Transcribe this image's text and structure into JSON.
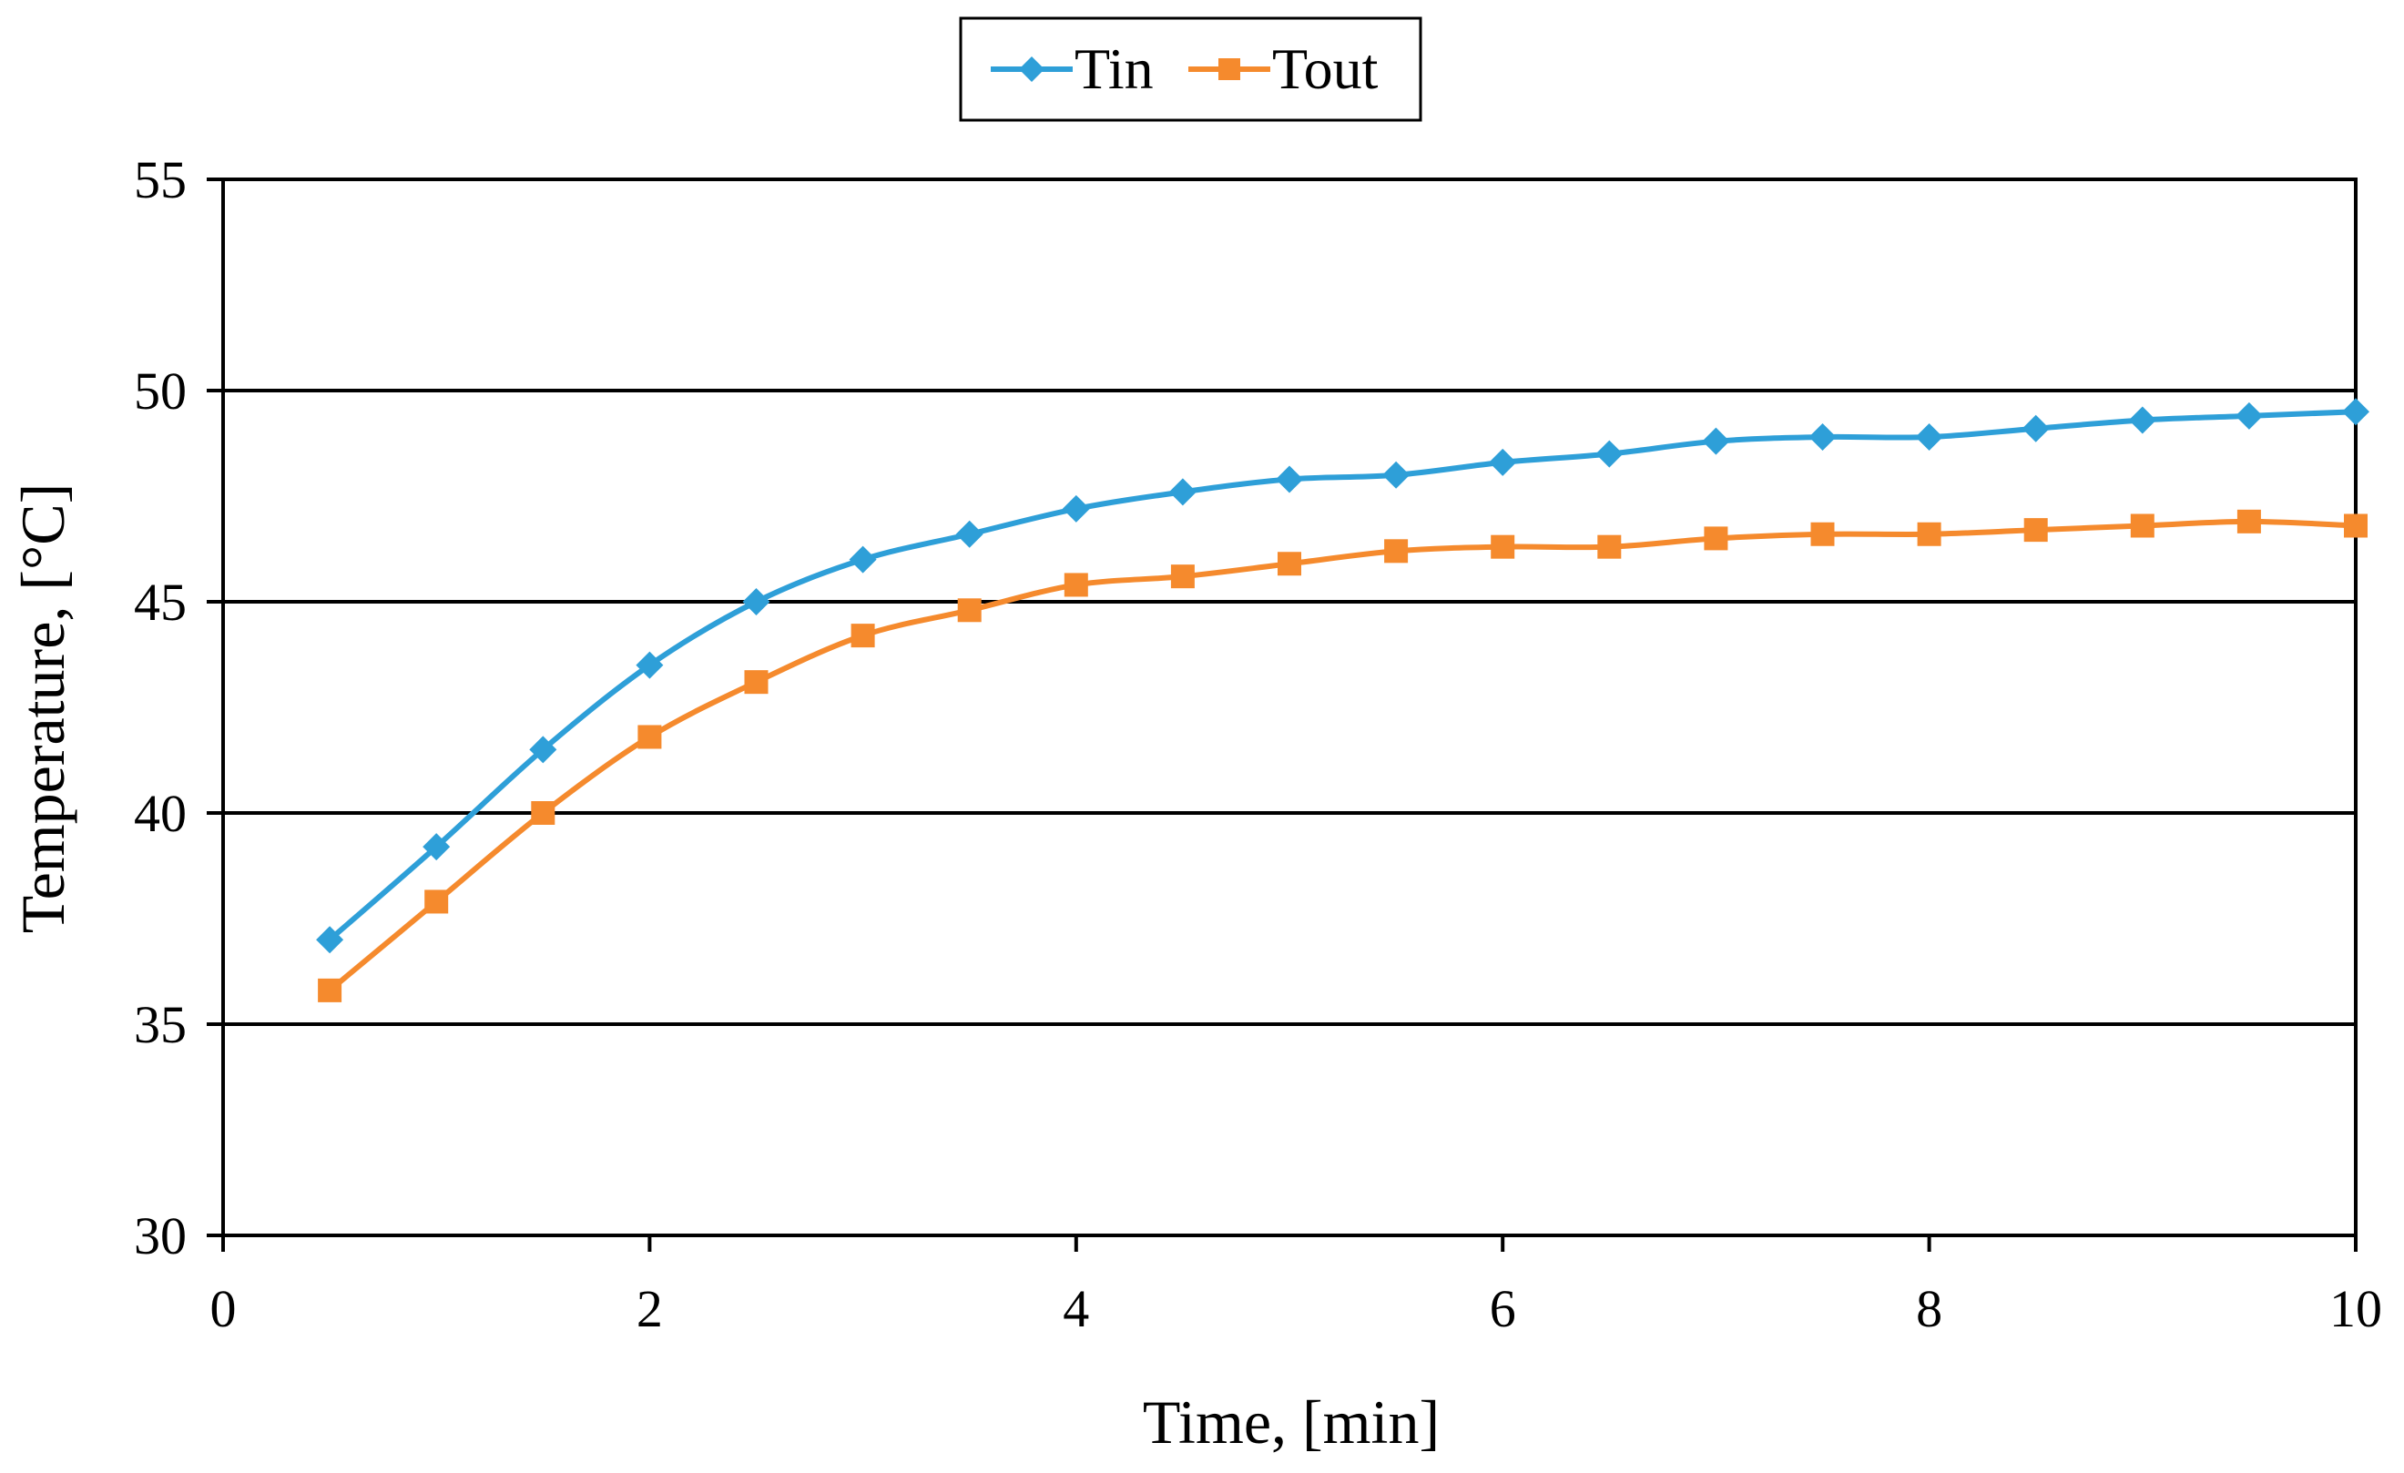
{
  "chart_data": {
    "type": "line",
    "title": "",
    "xlabel": "Time, [min]",
    "ylabel": "Temperature, [°C]",
    "xlim": [
      0,
      10
    ],
    "ylim": [
      30,
      55
    ],
    "x_ticks": [
      0,
      2,
      4,
      6,
      8,
      10
    ],
    "y_ticks": [
      30,
      35,
      40,
      45,
      50,
      55
    ],
    "x_tick_labels": [
      "0",
      "2",
      "4",
      "6",
      "8",
      "10"
    ],
    "y_tick_labels": [
      "30",
      "35",
      "40",
      "45",
      "50",
      "55"
    ],
    "grid": "horizontal",
    "legend_position": "top-center",
    "x": [
      0.5,
      1.0,
      1.5,
      2.0,
      2.5,
      3.0,
      3.5,
      4.0,
      4.5,
      5.0,
      5.5,
      6.0,
      6.5,
      7.0,
      7.5,
      8.0,
      8.5,
      9.0,
      9.5,
      10.0
    ],
    "series": [
      {
        "name": "Tin",
        "color": "#2e9fd8",
        "marker": "diamond",
        "values": [
          37.0,
          39.2,
          41.5,
          43.5,
          45.0,
          46.0,
          46.6,
          47.2,
          47.6,
          47.9,
          48.0,
          48.3,
          48.5,
          48.8,
          48.9,
          48.9,
          49.1,
          49.3,
          49.4,
          49.5
        ]
      },
      {
        "name": "Tout",
        "color": "#f58a2d",
        "marker": "square",
        "values": [
          35.8,
          37.9,
          40.0,
          41.8,
          43.1,
          44.2,
          44.8,
          45.4,
          45.6,
          45.9,
          46.2,
          46.3,
          46.3,
          46.5,
          46.6,
          46.6,
          46.7,
          46.8,
          46.9,
          46.8
        ]
      }
    ]
  }
}
